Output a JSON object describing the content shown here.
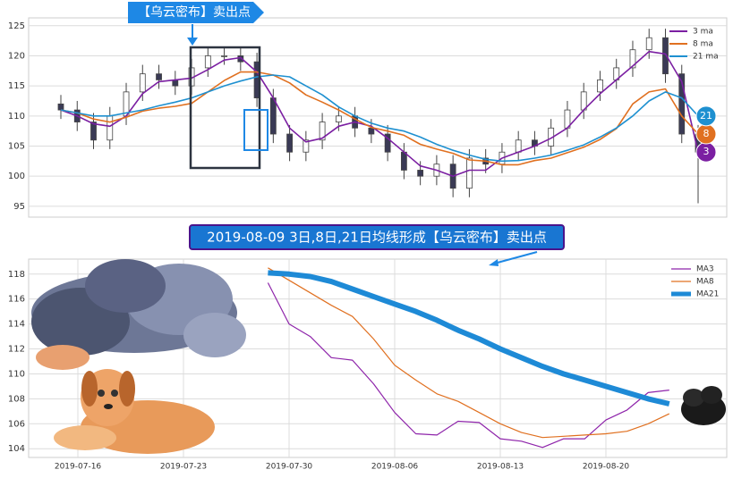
{
  "chart_data": [
    {
      "type": "candlestick",
      "open": [
        112,
        111,
        109,
        106,
        110,
        114,
        117,
        116,
        115,
        118,
        120,
        120,
        119,
        113,
        107,
        104,
        106,
        109,
        110,
        108,
        107,
        104,
        101,
        100,
        102,
        98,
        103,
        102,
        104,
        106,
        105,
        108,
        111,
        114,
        116,
        118,
        121,
        123,
        117,
        107
      ],
      "high": [
        113.5,
        112.5,
        110.5,
        111.5,
        115.5,
        118.5,
        118.5,
        117.5,
        119.5,
        121.5,
        121.5,
        121.5,
        120.5,
        114.5,
        108.5,
        107.5,
        110.5,
        111.5,
        111.5,
        109.5,
        108.5,
        105.5,
        102.5,
        103.5,
        103.5,
        104.5,
        104.5,
        105.5,
        107.5,
        107.5,
        109.5,
        112.5,
        115.5,
        117.5,
        119.5,
        122.5,
        124.5,
        124.5,
        118.5,
        108.5
      ],
      "low": [
        109.5,
        107.5,
        104.5,
        104.5,
        108.5,
        112.5,
        114.5,
        113.5,
        113.5,
        116.5,
        118.5,
        117.5,
        111.5,
        105.5,
        102.5,
        102.5,
        104.5,
        107.5,
        106.5,
        105.5,
        102.5,
        99.5,
        98.5,
        98.5,
        96.5,
        96.5,
        100.5,
        100.5,
        102.5,
        103.5,
        103.5,
        106.5,
        109.5,
        112.5,
        114.5,
        116.5,
        119.5,
        115.5,
        105.5,
        95.5
      ],
      "close": [
        111,
        109,
        106,
        110,
        114,
        117,
        116,
        115,
        118,
        120,
        120,
        119,
        113,
        107,
        104,
        106,
        109,
        110,
        108,
        107,
        104,
        101,
        100,
        102,
        98,
        103,
        102,
        104,
        106,
        105,
        108,
        111,
        114,
        116,
        118,
        121,
        123,
        117,
        107,
        104
      ],
      "series": [
        {
          "name": "3 ma",
          "tag": "3",
          "color": "#7b1fa2",
          "values": [
            111,
            110,
            108.7,
            108.3,
            110,
            113.7,
            115.7,
            116,
            116.3,
            117.7,
            119.3,
            119.7,
            117.3,
            113,
            108,
            105.7,
            106.3,
            108.3,
            109,
            108.3,
            106.3,
            104,
            101.7,
            101,
            100,
            101,
            101,
            103,
            104,
            105,
            106.3,
            108,
            111,
            113.7,
            116,
            118.3,
            120.7,
            120.3,
            115.7,
            104
          ]
        },
        {
          "name": "8 ma",
          "tag": "8",
          "color": "#e07020",
          "values": [
            111,
            110.5,
            109.5,
            109,
            109.8,
            110.8,
            111.3,
            111.6,
            112.1,
            114,
            115.9,
            117.3,
            117.3,
            116.8,
            115.5,
            113.5,
            112.3,
            111,
            109.5,
            108.1,
            107.5,
            106.8,
            105.3,
            104.5,
            103.8,
            102.7,
            102.5,
            101.9,
            101.9,
            102.6,
            103,
            103.9,
            104.8,
            106.1,
            107.9,
            112,
            114,
            114.5,
            110,
            107
          ]
        },
        {
          "name": "21 ma",
          "tag": "21",
          "color": "#1e90d0",
          "values": [
            111,
            110.5,
            110,
            110,
            110.5,
            111,
            111.7,
            112.3,
            113,
            114,
            115,
            115.8,
            116.5,
            116.8,
            116.5,
            115,
            113.5,
            111.5,
            110,
            108.8,
            108,
            107.5,
            106.5,
            105.3,
            104.3,
            103.5,
            102.8,
            102.5,
            102.6,
            103,
            103.5,
            104.3,
            105.2,
            106.5,
            108,
            110,
            112.5,
            114,
            113,
            110
          ]
        }
      ],
      "ylim": [
        93.2,
        126.3
      ],
      "yticks": [
        95,
        100,
        105,
        110,
        115,
        120,
        125
      ],
      "grid": true,
      "legend": "upper right",
      "annotation": "【乌云密布】卖出点"
    },
    {
      "type": "line",
      "annotation": "2019-08-09 3日,8日,21日均线形成【乌云密布】卖出点",
      "categories": [
        null,
        "2019-07-16",
        null,
        null,
        null,
        null,
        "2019-07-23",
        null,
        null,
        null,
        null,
        "2019-07-30",
        null,
        null,
        null,
        null,
        "2019-08-06",
        null,
        null,
        null,
        null,
        "2019-08-13",
        null,
        null,
        null,
        null,
        "2019-08-20",
        null,
        null,
        null
      ],
      "series": [
        {
          "name": "MA3",
          "color": "#8e24aa",
          "width": 1.2,
          "values": [
            null,
            null,
            null,
            null,
            null,
            null,
            null,
            null,
            null,
            null,
            117.3,
            114,
            113,
            111.3,
            111.1,
            109.2,
            106.9,
            105.2,
            105.1,
            106.2,
            106.1,
            104.8,
            104.6,
            104.1,
            104.8,
            104.8,
            106.3,
            107.1,
            108.5,
            108.7
          ]
        },
        {
          "name": "MA8",
          "color": "#e07020",
          "width": 1.2,
          "values": [
            null,
            null,
            null,
            null,
            null,
            null,
            null,
            null,
            null,
            null,
            118.5,
            117.5,
            116.5,
            115.5,
            114.6,
            112.8,
            110.7,
            109.5,
            108.4,
            107.8,
            106.9,
            106,
            105.3,
            104.9,
            105,
            105.1,
            105.2,
            105.4,
            106,
            106.8
          ]
        },
        {
          "name": "MA21",
          "color": "#1e8ad6",
          "width": 6,
          "values": [
            null,
            null,
            null,
            null,
            null,
            null,
            null,
            null,
            null,
            null,
            118.1,
            118,
            117.8,
            117.4,
            116.8,
            116.2,
            115.6,
            115,
            114.3,
            113.5,
            112.8,
            112,
            111.3,
            110.6,
            110,
            109.5,
            109,
            108.5,
            108,
            107.6
          ]
        }
      ],
      "ylim": [
        103.3,
        119.2
      ],
      "yticks": [
        104,
        106,
        108,
        110,
        112,
        114,
        116,
        118
      ],
      "grid": true,
      "legend": "upper right"
    }
  ]
}
